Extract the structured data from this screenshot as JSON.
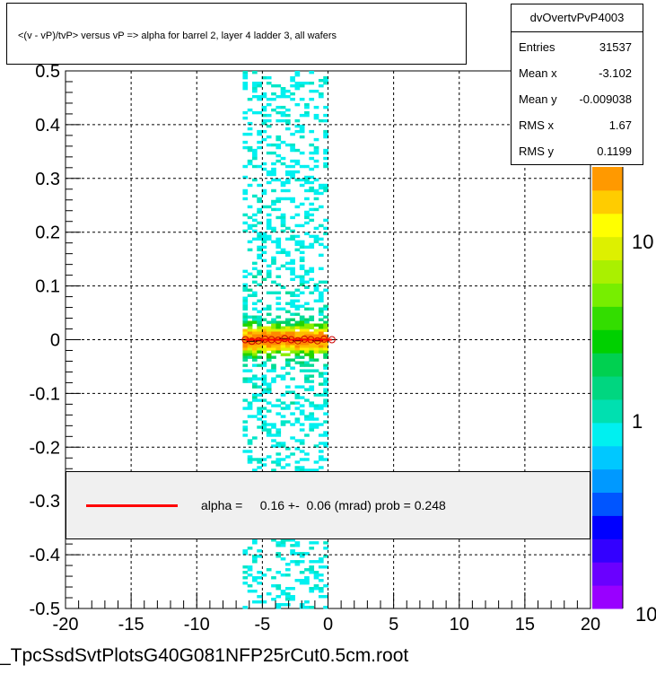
{
  "title": "<(v - vP)/tvP> versus   vP => alpha for barrel 2, layer 4 ladder 3, all wafers",
  "stats": {
    "name": "dvOvertvPvP4003",
    "rows": [
      {
        "key": "Entries",
        "value": "31537"
      },
      {
        "key": "Mean x",
        "value": "-3.102"
      },
      {
        "key": "Mean y",
        "value": "-0.009038"
      },
      {
        "key": "RMS x",
        "value": "1.67"
      },
      {
        "key": "RMS y",
        "value": "0.1199"
      }
    ]
  },
  "legend": {
    "text": "alpha =     0.16 +-  0.06 (mrad) prob = 0.248",
    "line_color": "#ff0000"
  },
  "footer": "_TpcSsdSvtPlotsG40G081NFP25rCut0.5cm.root",
  "chart_data": {
    "type": "heatmap",
    "x_ticks": [
      "-20",
      "-15",
      "-10",
      "-5",
      "0",
      "5",
      "10",
      "15",
      "20"
    ],
    "y_ticks": [
      "-0.5",
      "-0.4",
      "-0.3",
      "-0.2",
      "-0.1",
      "0",
      "0.1",
      "0.2",
      "0.3",
      "0.4",
      "0.5"
    ],
    "xlim": [
      -20,
      20
    ],
    "ylim": [
      -0.5,
      0.5
    ],
    "grid": true,
    "occupied_x_range": [
      -6.5,
      0
    ],
    "colorbar": {
      "scale": "log",
      "tick_labels": [
        "1",
        "10"
      ],
      "bottom_label": "10",
      "colors": [
        "#9900ff",
        "#6a00ff",
        "#3300ff",
        "#0000ff",
        "#0055ff",
        "#0099ff",
        "#00c8ff",
        "#00f0f0",
        "#00e0b0",
        "#00d680",
        "#00d050",
        "#00d000",
        "#33dd00",
        "#77ee00",
        "#aaf000",
        "#ddf000",
        "#ffff00",
        "#ffcc00",
        "#ff9900"
      ]
    },
    "profile_points": {
      "x": [
        -6.3,
        -5.8,
        -5.3,
        -4.8,
        -4.3,
        -3.8,
        -3.3,
        -2.8,
        -2.3,
        -1.8,
        -1.3,
        -0.8,
        -0.3,
        0.3
      ],
      "y": [
        0.0,
        -0.003,
        -0.002,
        0.001,
        0.0,
        -0.001,
        0.002,
        0.0,
        -0.002,
        0.001,
        0.0,
        -0.002,
        0.001,
        0.0
      ]
    },
    "fit": {
      "slope_mrad": 0.16,
      "error_mrad": 0.06,
      "prob": 0.248
    }
  }
}
